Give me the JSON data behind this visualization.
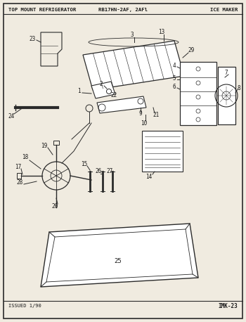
{
  "title_left": "TOP MOUNT REFRIGERATOR",
  "title_center": "RB17HN-2AF, 2AFl",
  "title_right": "ICE MAKER",
  "footer_left": "ISSUED 1/90",
  "footer_right": "IMK-23",
  "bg_color": "#f0ebe0",
  "line_color": "#2a2a2a",
  "text_color": "#1a1a1a",
  "fig_width": 3.5,
  "fig_height": 4.58,
  "dpi": 100
}
